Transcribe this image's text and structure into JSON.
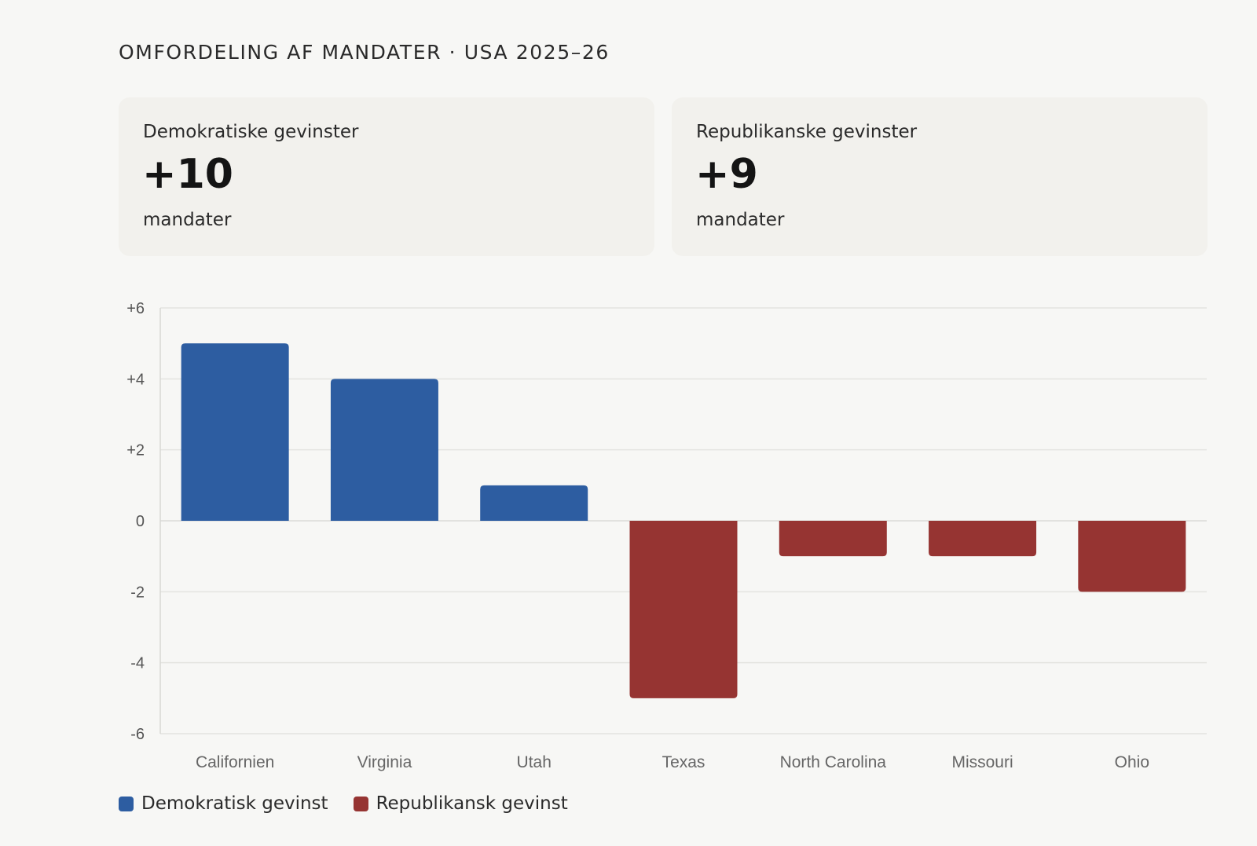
{
  "title": "OMFORDELING AF MANDATER · USA 2025–26",
  "cards": {
    "democratic": {
      "label": "Demokratiske gevinster",
      "value": "+10",
      "unit": "mandater"
    },
    "republican": {
      "label": "Republikanske gevinster",
      "value": "+9",
      "unit": "mandater"
    }
  },
  "colors": {
    "democratic": "#2d5da1",
    "republican": "#963432"
  },
  "legend": {
    "democratic": "Demokratisk gevinst",
    "republican": "Republikansk gevinst"
  },
  "chart_data": {
    "type": "bar",
    "categories": [
      "Californien",
      "Virginia",
      "Utah",
      "Texas",
      "North Carolina",
      "Missouri",
      "Ohio"
    ],
    "series": [
      {
        "name": "Demokratisk gevinst",
        "values": [
          5,
          4,
          1,
          null,
          null,
          null,
          null
        ]
      },
      {
        "name": "Republikansk gevinst",
        "values": [
          null,
          null,
          null,
          -5,
          -1,
          -1,
          -2
        ]
      }
    ],
    "values": [
      5,
      4,
      1,
      -5,
      -1,
      -1,
      -2
    ],
    "ylim": [
      -6,
      6
    ],
    "yticks": [
      6,
      4,
      2,
      0,
      -2,
      -4,
      -6
    ],
    "ytick_labels": [
      "+6",
      "+4",
      "+2",
      "0",
      "-2",
      "-4",
      "-6"
    ],
    "grid": true,
    "legend_position": "bottom-left"
  }
}
